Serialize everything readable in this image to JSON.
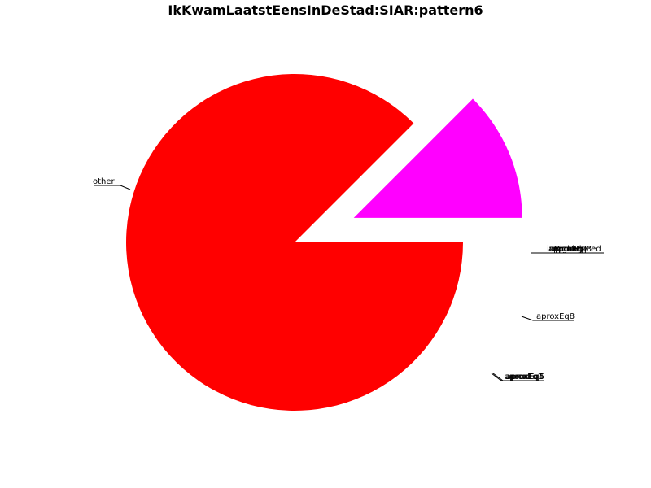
{
  "chart_data": {
    "type": "pie",
    "title": "IkKwamLaatstEensInDeStad:SIAR:pattern6",
    "slices": [
      {
        "label": "other",
        "value": 87.5,
        "color": "#ff0000"
      },
      {
        "label": "aproxEq8",
        "value": 12.5,
        "color": "#ff00ff"
      }
    ],
    "label_clusters": [
      {
        "labels": [
          "inBigbag",
          "aproxEq2",
          "aproxEq7",
          "equalPlaced",
          "aproxEq3"
        ]
      },
      {
        "labels": [
          "aproxEq1",
          "aproxEq4",
          "aproxEq5"
        ]
      }
    ]
  }
}
